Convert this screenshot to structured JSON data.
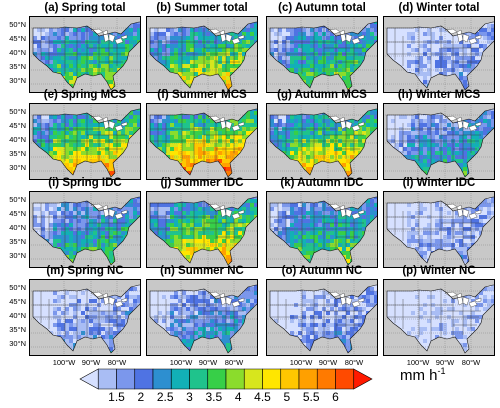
{
  "panels": [
    {
      "title": "(a) Spring total",
      "intensity": 0.55
    },
    {
      "title": "(b) Summer total",
      "intensity": 0.62
    },
    {
      "title": "(c) Autumn total",
      "intensity": 0.5
    },
    {
      "title": "(d) Winter total",
      "intensity": 0.18
    },
    {
      "title": "(e) Spring MCS",
      "intensity": 0.72
    },
    {
      "title": "(f) Summer MCS",
      "intensity": 0.82
    },
    {
      "title": "(g) Autumn MCS",
      "intensity": 0.7
    },
    {
      "title": "(h) Winter MCS",
      "intensity": 0.38
    },
    {
      "title": "(i) Spring IDC",
      "intensity": 0.45
    },
    {
      "title": "(j) Summer IDC",
      "intensity": 0.68
    },
    {
      "title": "(k) Autumn IDC",
      "intensity": 0.5
    },
    {
      "title": "(l) Winter IDC",
      "intensity": 0.15
    },
    {
      "title": "(m) Spring NC",
      "intensity": 0.2
    },
    {
      "title": "(n) Summer NC",
      "intensity": 0.3
    },
    {
      "title": "(o) Autumn NC",
      "intensity": 0.2
    },
    {
      "title": "(p) Winter NC",
      "intensity": 0.08
    }
  ],
  "lat_labels": [
    "50°N",
    "45°N",
    "40°N",
    "35°N",
    "30°N"
  ],
  "lon_labels": [
    "100°W",
    "90°W",
    "80°W"
  ],
  "colorbar": {
    "ticks": [
      "1.5",
      "2",
      "2.5",
      "3",
      "3.5",
      "4",
      "4.5",
      "5",
      "5.5",
      "6"
    ],
    "colors": [
      "#d6e0ff",
      "#a9bdf4",
      "#7b97ec",
      "#4f73e3",
      "#2d8fd0",
      "#12b0b6",
      "#1fc38c",
      "#37cf48",
      "#8bdc2c",
      "#d7e61d",
      "#ffe600",
      "#ffc700",
      "#ffa000",
      "#ff7a00",
      "#ff4a00",
      "#ff1a00"
    ],
    "unit": "mm h",
    "unit_exp": "-1"
  }
}
